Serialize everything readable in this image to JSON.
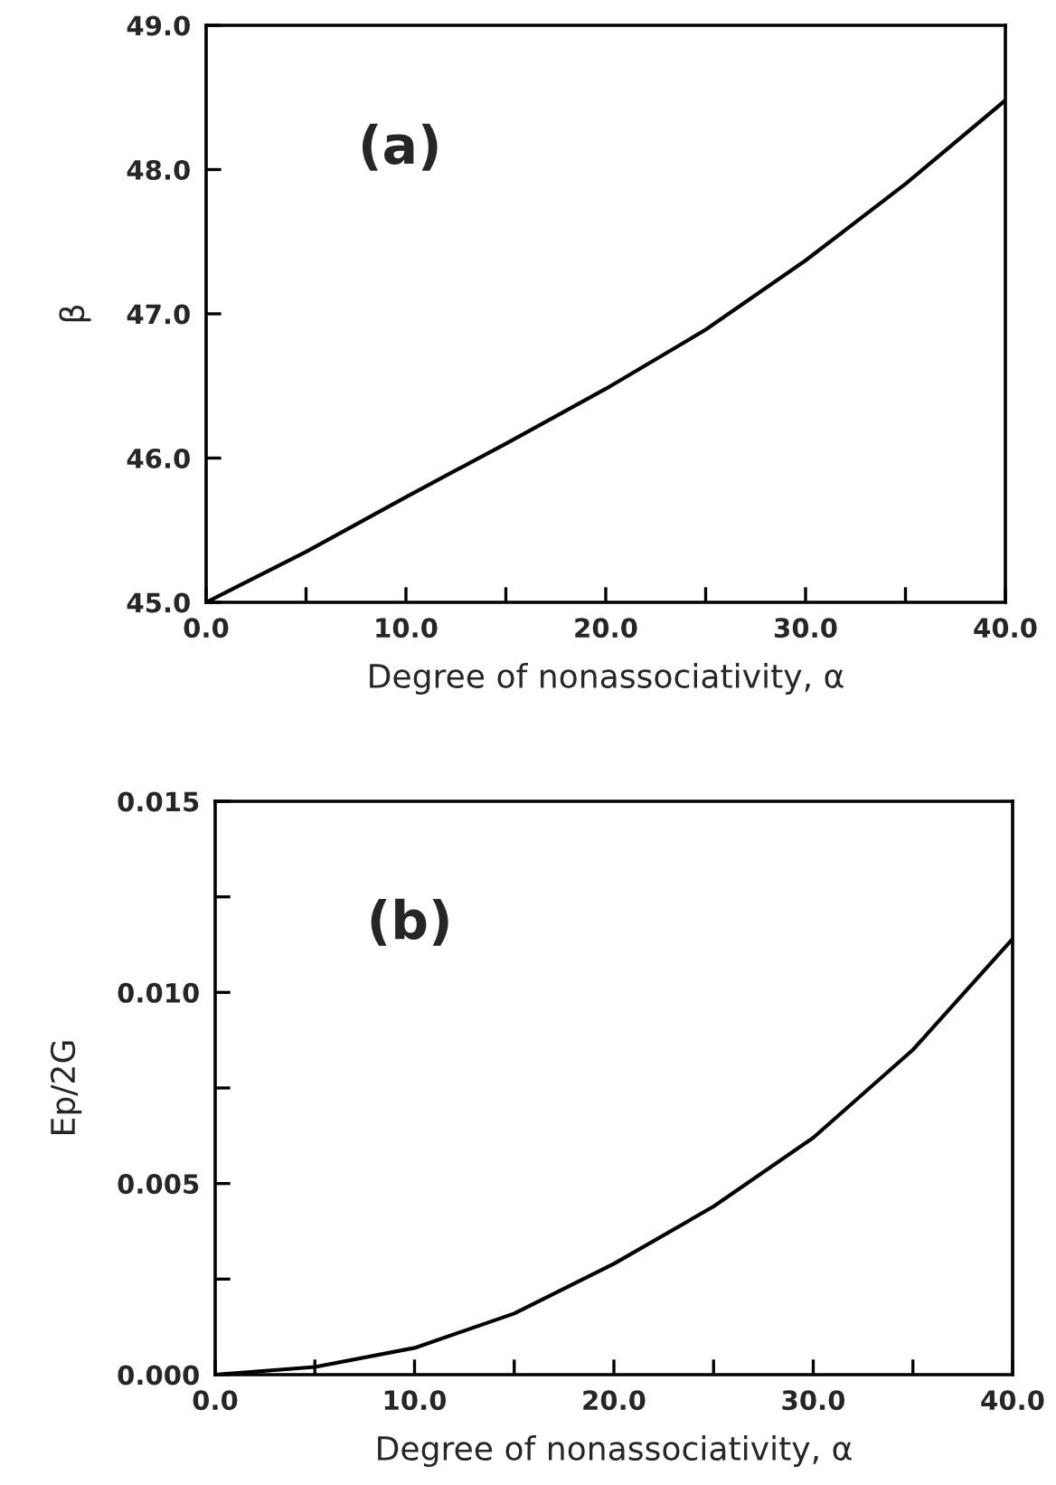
{
  "chart_data": [
    {
      "type": "line",
      "xlabel": "Degree of nonassociativity, α",
      "ylabel": "β",
      "annotations": [
        "(a)"
      ],
      "x": [
        0,
        5,
        10,
        15,
        20,
        25,
        30,
        35,
        40
      ],
      "series": [
        {
          "color": "#000000",
          "values": [
            45.0,
            45.35,
            45.73,
            46.1,
            46.48,
            46.89,
            47.37,
            47.9,
            48.48
          ]
        }
      ],
      "xlim": [
        0,
        40
      ],
      "ylim": [
        45,
        49
      ],
      "xticks": [
        {
          "value": 0,
          "label": "0.0"
        },
        {
          "value": 5,
          "label": null
        },
        {
          "value": 10,
          "label": "10.0"
        },
        {
          "value": 15,
          "label": null
        },
        {
          "value": 20,
          "label": "20.0"
        },
        {
          "value": 25,
          "label": null
        },
        {
          "value": 30,
          "label": "30.0"
        },
        {
          "value": 35,
          "label": null
        },
        {
          "value": 40,
          "label": "40.0"
        }
      ],
      "yticks": [
        {
          "value": 45,
          "label": "45.0"
        },
        {
          "value": 46,
          "label": "46.0"
        },
        {
          "value": 47,
          "label": "47.0"
        },
        {
          "value": 48,
          "label": "48.0"
        },
        {
          "value": 49,
          "label": "49.0"
        }
      ],
      "grid": false,
      "legend": false,
      "marker": "none",
      "line_style": "solid"
    },
    {
      "type": "line",
      "xlabel": "Degree of nonassociativity, α",
      "ylabel": "Ep/2G",
      "annotations": [
        "(b)"
      ],
      "x": [
        0,
        5,
        10,
        15,
        20,
        25,
        30,
        35,
        40
      ],
      "series": [
        {
          "color": "#000000",
          "values": [
            0.0,
            0.0002,
            0.0007,
            0.0016,
            0.0029,
            0.0044,
            0.0062,
            0.0085,
            0.0114
          ]
        }
      ],
      "xlim": [
        0,
        40
      ],
      "ylim": [
        0,
        0.015
      ],
      "xticks": [
        {
          "value": 0,
          "label": "0.0"
        },
        {
          "value": 5,
          "label": null
        },
        {
          "value": 10,
          "label": "10.0"
        },
        {
          "value": 15,
          "label": null
        },
        {
          "value": 20,
          "label": "20.0"
        },
        {
          "value": 25,
          "label": null
        },
        {
          "value": 30,
          "label": "30.0"
        },
        {
          "value": 35,
          "label": null
        },
        {
          "value": 40,
          "label": "40.0"
        }
      ],
      "yticks": [
        {
          "value": 0,
          "label": "0.000"
        },
        {
          "value": 0.0025,
          "label": null
        },
        {
          "value": 0.005,
          "label": "0.005"
        },
        {
          "value": 0.0075,
          "label": null
        },
        {
          "value": 0.01,
          "label": "0.010"
        },
        {
          "value": 0.0125,
          "label": null
        },
        {
          "value": 0.015,
          "label": "0.015"
        }
      ],
      "grid": false,
      "legend": false,
      "marker": "none",
      "line_style": "solid"
    }
  ]
}
